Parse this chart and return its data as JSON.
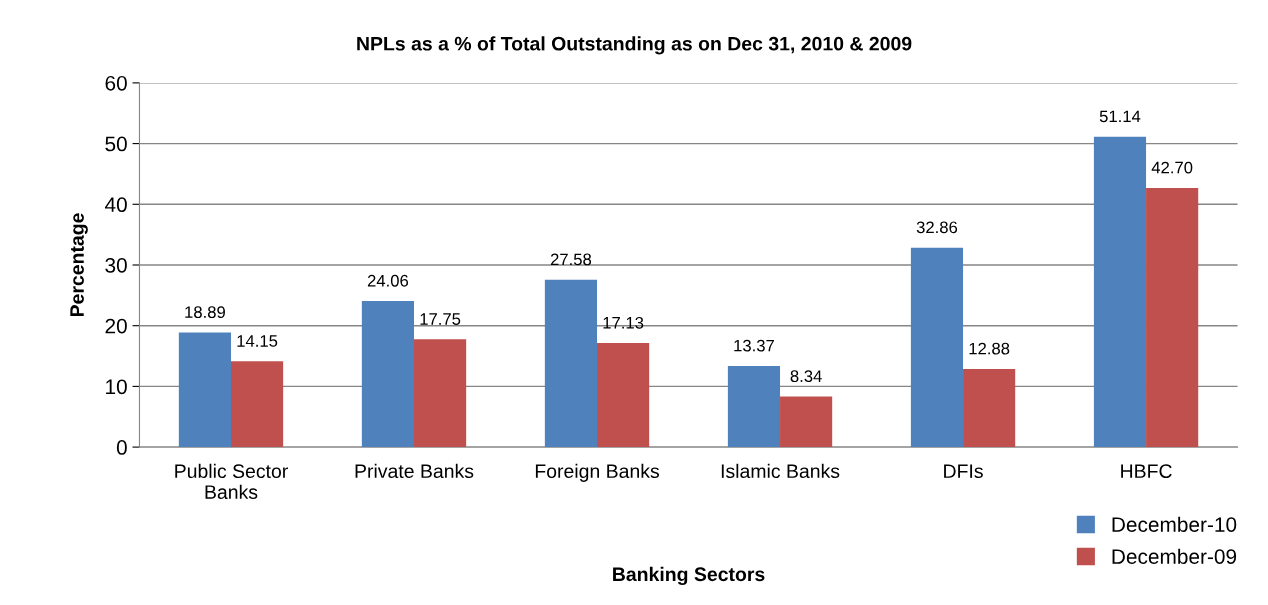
{
  "chart_data": {
    "type": "bar",
    "title": "NPLs as a % of Total Outstanding as on Dec 31, 2010 & 2009",
    "xlabel": "Banking Sectors",
    "ylabel": "Percentage",
    "categories": [
      "Public Sector\nBanks",
      "Private Banks",
      "Foreign Banks",
      "Islamic Banks",
      "DFIs",
      "HBFC"
    ],
    "series": [
      {
        "name": "December-10",
        "color": "#4f81bd",
        "values": [
          18.89,
          24.06,
          27.58,
          13.37,
          32.86,
          51.14
        ],
        "value_labels": [
          "18.89",
          "24.06",
          "27.58",
          "13.37",
          "32.86",
          "51.14"
        ]
      },
      {
        "name": "December-09",
        "color": "#c0504d",
        "values": [
          14.15,
          17.75,
          17.13,
          8.34,
          12.88,
          42.7
        ],
        "value_labels": [
          "14.15",
          "17.75",
          "17.13",
          "8.34",
          "12.88",
          "42.70"
        ]
      }
    ],
    "ylim": [
      0,
      60
    ],
    "yticks": [
      0,
      10,
      20,
      30,
      40,
      50,
      60
    ],
    "grid": "y",
    "legend": "bottom right"
  }
}
